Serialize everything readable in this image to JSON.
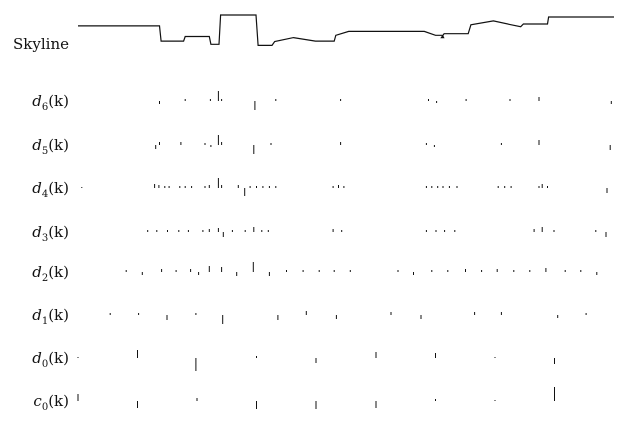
{
  "figure": {
    "skyline_label": "Skyline",
    "rows": [
      {
        "key": "d6",
        "symbol": "d",
        "index": "6",
        "arg": "(k)"
      },
      {
        "key": "d5",
        "symbol": "d",
        "index": "5",
        "arg": "(k)"
      },
      {
        "key": "d4",
        "symbol": "d",
        "index": "4",
        "arg": "(k)"
      },
      {
        "key": "d3",
        "symbol": "d",
        "index": "3",
        "arg": "(k)"
      },
      {
        "key": "d2",
        "symbol": "d",
        "index": "2",
        "arg": "(k)"
      },
      {
        "key": "d1",
        "symbol": "d",
        "index": "1",
        "arg": "(k)"
      },
      {
        "key": "d0",
        "symbol": "d",
        "index": "0",
        "arg": "(k)"
      },
      {
        "key": "c0",
        "symbol": "c",
        "index": "0",
        "arg": "(k)"
      }
    ]
  },
  "skyline_profile": [
    [
      0,
      0.72
    ],
    [
      0.152,
      0.72
    ],
    [
      0.155,
      0.33
    ],
    [
      0.197,
      0.33
    ],
    [
      0.2,
      0.45
    ],
    [
      0.245,
      0.45
    ],
    [
      0.248,
      0.25
    ],
    [
      0.263,
      0.25
    ],
    [
      0.266,
      1.0
    ],
    [
      0.332,
      1.0
    ],
    [
      0.336,
      0.22
    ],
    [
      0.362,
      0.22
    ],
    [
      0.367,
      0.32
    ],
    [
      0.402,
      0.42
    ],
    [
      0.443,
      0.33
    ],
    [
      0.478,
      0.33
    ],
    [
      0.481,
      0.48
    ],
    [
      0.505,
      0.58
    ],
    [
      0.646,
      0.58
    ],
    [
      0.667,
      0.48
    ],
    [
      0.68,
      0.48
    ],
    [
      0.682,
      0.42
    ],
    [
      0.678,
      0.42
    ],
    [
      0.683,
      0.52
    ],
    [
      0.728,
      0.52
    ],
    [
      0.733,
      0.75
    ],
    [
      0.775,
      0.85
    ],
    [
      0.805,
      0.76
    ],
    [
      0.826,
      0.7
    ],
    [
      0.831,
      0.77
    ],
    [
      0.876,
      0.77
    ],
    [
      0.878,
      0.95
    ],
    [
      1.0,
      0.95
    ]
  ],
  "coefficients": {
    "d6": [
      [
        0.152,
        -0.3
      ],
      [
        0.2,
        0.2
      ],
      [
        0.247,
        0.2
      ],
      [
        0.262,
        1.0
      ],
      [
        0.268,
        0.2
      ],
      [
        0.33,
        -0.9
      ],
      [
        0.369,
        0.2
      ],
      [
        0.49,
        0.2
      ],
      [
        0.654,
        0.2
      ],
      [
        0.669,
        -0.2
      ],
      [
        0.724,
        0.2
      ],
      [
        0.806,
        0.2
      ],
      [
        0.86,
        0.4
      ],
      [
        0.995,
        -0.3
      ]
    ],
    "d5": [
      [
        0.145,
        -0.4
      ],
      [
        0.152,
        0.3
      ],
      [
        0.192,
        0.3
      ],
      [
        0.237,
        0.2
      ],
      [
        0.248,
        -0.2
      ],
      [
        0.262,
        1.0
      ],
      [
        0.268,
        0.3
      ],
      [
        0.328,
        -0.9
      ],
      [
        0.36,
        0.2
      ],
      [
        0.49,
        0.3
      ],
      [
        0.65,
        0.2
      ],
      [
        0.665,
        -0.2
      ],
      [
        0.79,
        0.2
      ],
      [
        0.86,
        0.5
      ],
      [
        0.993,
        -0.5
      ]
    ],
    "d4": [
      [
        0.007,
        0.1
      ],
      [
        0.143,
        0.4
      ],
      [
        0.151,
        0.3
      ],
      [
        0.162,
        0.2
      ],
      [
        0.17,
        0.2
      ],
      [
        0.19,
        0.2
      ],
      [
        0.2,
        0.2
      ],
      [
        0.212,
        0.2
      ],
      [
        0.237,
        0.2
      ],
      [
        0.245,
        0.3
      ],
      [
        0.262,
        1.0
      ],
      [
        0.268,
        0.3
      ],
      [
        0.299,
        0.3
      ],
      [
        0.311,
        -0.8
      ],
      [
        0.321,
        0.2
      ],
      [
        0.333,
        0.2
      ],
      [
        0.345,
        0.2
      ],
      [
        0.357,
        0.2
      ],
      [
        0.369,
        0.2
      ],
      [
        0.476,
        0.2
      ],
      [
        0.486,
        0.3
      ],
      [
        0.496,
        0.2
      ],
      [
        0.65,
        0.2
      ],
      [
        0.66,
        0.2
      ],
      [
        0.671,
        0.2
      ],
      [
        0.681,
        0.2
      ],
      [
        0.693,
        0.2
      ],
      [
        0.707,
        0.2
      ],
      [
        0.784,
        0.2
      ],
      [
        0.796,
        0.2
      ],
      [
        0.808,
        0.2
      ],
      [
        0.86,
        0.2
      ],
      [
        0.866,
        0.4
      ],
      [
        0.876,
        0.2
      ],
      [
        0.987,
        -0.5
      ]
    ],
    "d3": [
      [
        0.13,
        0.2
      ],
      [
        0.147,
        0.2
      ],
      [
        0.167,
        0.2
      ],
      [
        0.188,
        0.2
      ],
      [
        0.206,
        0.2
      ],
      [
        0.233,
        0.2
      ],
      [
        0.245,
        0.3
      ],
      [
        0.262,
        0.4
      ],
      [
        0.271,
        -0.5
      ],
      [
        0.288,
        0.2
      ],
      [
        0.312,
        0.2
      ],
      [
        0.328,
        0.5
      ],
      [
        0.343,
        0.2
      ],
      [
        0.355,
        0.2
      ],
      [
        0.476,
        0.3
      ],
      [
        0.492,
        0.2
      ],
      [
        0.65,
        0.2
      ],
      [
        0.668,
        0.2
      ],
      [
        0.684,
        0.2
      ],
      [
        0.703,
        0.2
      ],
      [
        0.851,
        0.3
      ],
      [
        0.866,
        0.5
      ],
      [
        0.888,
        0.2
      ],
      [
        0.966,
        0.2
      ],
      [
        0.985,
        -0.5
      ]
    ],
    "d2": [
      [
        0.09,
        0.2
      ],
      [
        0.12,
        -0.3
      ],
      [
        0.156,
        0.3
      ],
      [
        0.183,
        0.2
      ],
      [
        0.21,
        0.3
      ],
      [
        0.225,
        -0.3
      ],
      [
        0.245,
        0.6
      ],
      [
        0.268,
        0.5
      ],
      [
        0.296,
        -0.4
      ],
      [
        0.327,
        1.0
      ],
      [
        0.357,
        -0.4
      ],
      [
        0.389,
        0.2
      ],
      [
        0.42,
        0.2
      ],
      [
        0.45,
        0.2
      ],
      [
        0.478,
        0.2
      ],
      [
        0.508,
        0.2
      ],
      [
        0.597,
        0.2
      ],
      [
        0.626,
        -0.3
      ],
      [
        0.66,
        0.2
      ],
      [
        0.69,
        0.2
      ],
      [
        0.723,
        0.3
      ],
      [
        0.753,
        0.2
      ],
      [
        0.782,
        0.3
      ],
      [
        0.813,
        0.2
      ],
      [
        0.843,
        0.2
      ],
      [
        0.873,
        0.4
      ],
      [
        0.909,
        0.2
      ],
      [
        0.938,
        0.2
      ],
      [
        0.968,
        -0.3
      ]
    ],
    "d1": [
      [
        0.06,
        0.2
      ],
      [
        0.113,
        0.2
      ],
      [
        0.166,
        -0.5
      ],
      [
        0.22,
        0.2
      ],
      [
        0.27,
        -0.9
      ],
      [
        0.373,
        -0.5
      ],
      [
        0.426,
        0.4
      ],
      [
        0.482,
        -0.4
      ],
      [
        0.584,
        0.3
      ],
      [
        0.64,
        -0.4
      ],
      [
        0.74,
        0.3
      ],
      [
        0.79,
        0.3
      ],
      [
        0.895,
        -0.3
      ],
      [
        0.948,
        0.2
      ]
    ],
    "d0": [
      [
        0.0,
        0.1
      ],
      [
        0.111,
        0.8
      ],
      [
        0.22,
        -1.3
      ],
      [
        0.333,
        0.2
      ],
      [
        0.444,
        -0.5
      ],
      [
        0.556,
        0.6
      ],
      [
        0.667,
        0.5
      ],
      [
        0.778,
        0.1
      ],
      [
        0.889,
        -0.6
      ]
    ],
    "c0": [
      [
        0.0,
        0.7
      ],
      [
        0.111,
        -0.7
      ],
      [
        0.222,
        0.3
      ],
      [
        0.333,
        -0.8
      ],
      [
        0.444,
        -0.8
      ],
      [
        0.556,
        -0.7
      ],
      [
        0.667,
        0.2
      ],
      [
        0.778,
        0.1
      ],
      [
        0.889,
        1.4
      ]
    ]
  }
}
